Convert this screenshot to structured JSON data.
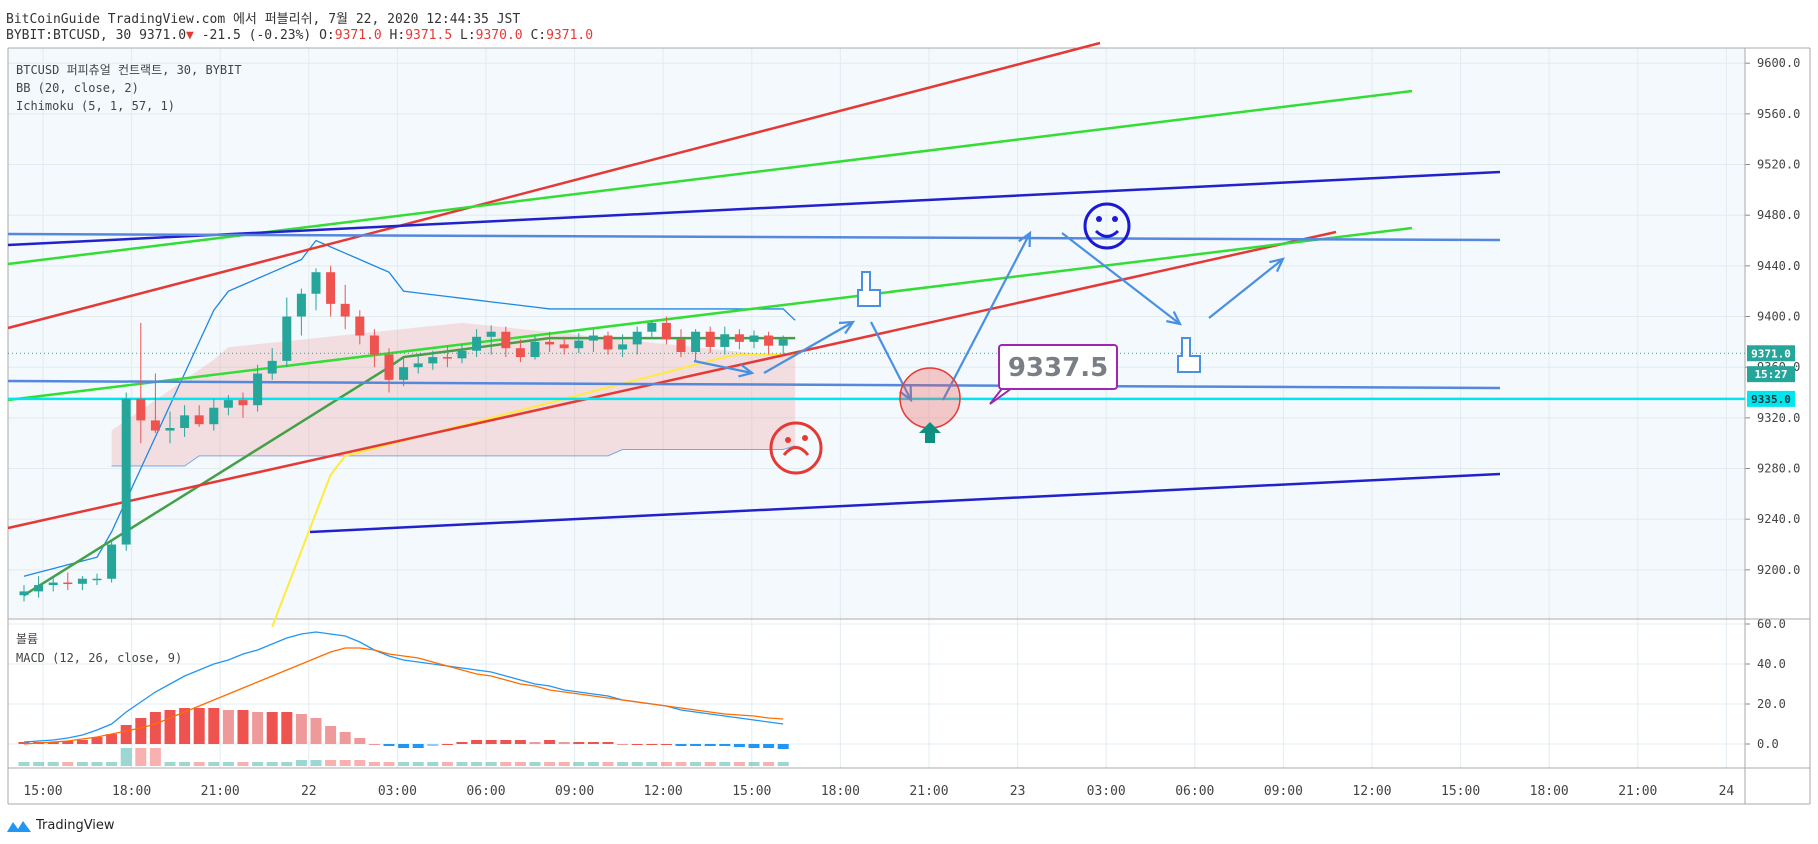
{
  "header": {
    "line1": "BitCoinGuide TradingView.com 에서 퍼블리쉬, 7월 22, 2020 12:44:35 JST",
    "symbol": "BYBIT:BTCUSD, 30",
    "last": "9371.0",
    "change": "-21.5 (-0.23%)",
    "o_label": "O:",
    "o": "9371.0",
    "h_label": "H:",
    "h": "9371.5",
    "l_label": "L:",
    "l": "9370.0",
    "c_label": "C:",
    "c": "9371.0",
    "down_arrow": "▼"
  },
  "legend": {
    "instrument": "BTCUSD 퍼피츄얼 컨트랙트, 30, BYBIT",
    "bb": "BB (20, close, 2)",
    "ichimoku": "Ichimoku (5, 1, 57, 1)",
    "volume": "볼륨",
    "macd": "MACD (12, 26, close, 9)"
  },
  "annotation": {
    "price_box": "9337.5"
  },
  "footer": {
    "brand": "TradingView"
  },
  "colors": {
    "up": "#26a69a",
    "down": "#ef5350",
    "red_line": "#e53935",
    "green_line": "#33dd33",
    "blue_line": "#2222cc",
    "steel_line": "#5588dd",
    "cyan_line": "#00e5ee",
    "bb_line": "#1e88e5",
    "conv_line": "#43a047",
    "lag_line": "#ffeb3b",
    "macd_line": "#2196f3",
    "signal_line": "#ff6d00",
    "annotation_purple": "#9c27b0"
  },
  "chart_data": [
    {
      "type": "candlestick",
      "title": "BTCUSD 퍼피츄얼 컨트랙트, 30, BYBIT",
      "x_ticks": [
        "15:00",
        "18:00",
        "21:00",
        "22",
        "03:00",
        "06:00",
        "09:00",
        "12:00",
        "15:00",
        "18:00",
        "21:00",
        "23",
        "03:00",
        "06:00",
        "09:00",
        "12:00",
        "15:00",
        "18:00",
        "21:00",
        "24"
      ],
      "y_ticks": [
        9200,
        9240,
        9280,
        9320,
        9360,
        9400,
        9440,
        9480,
        9520,
        9560,
        9600
      ],
      "ylim": [
        9162,
        9612
      ],
      "price_labels": [
        {
          "text": "9371.0",
          "value": 9371.0,
          "color": "#26a69a"
        },
        {
          "text": "15:27",
          "value": 9354.5,
          "color": "#26a69a"
        },
        {
          "text": "9335.0",
          "value": 9335.0,
          "color": "#00e5ee"
        }
      ],
      "candles": {
        "open": [
          9180,
          9183,
          9188,
          9190,
          9189,
          9193,
          9193,
          9220,
          9335,
          9318,
          9310,
          9312,
          9322,
          9315,
          9328,
          9334,
          9330,
          9355,
          9365,
          9400,
          9418,
          9435,
          9410,
          9400,
          9385,
          9370,
          9350,
          9360,
          9363,
          9368,
          9367,
          9373,
          9384,
          9388,
          9375,
          9368,
          9380,
          9378,
          9375,
          9381,
          9385,
          9374,
          9378,
          9388,
          9395,
          9382,
          9372,
          9388,
          9376,
          9386,
          9380,
          9385,
          9377
        ],
        "high": [
          9188,
          9195,
          9195,
          9198,
          9195,
          9197,
          9224,
          9340,
          9395,
          9355,
          9325,
          9330,
          9330,
          9335,
          9338,
          9340,
          9362,
          9375,
          9415,
          9422,
          9438,
          9440,
          9425,
          9405,
          9390,
          9375,
          9368,
          9370,
          9373,
          9377,
          9378,
          9390,
          9393,
          9392,
          9382,
          9385,
          9388,
          9384,
          9387,
          9390,
          9388,
          9386,
          9392,
          9397,
          9400,
          9390,
          9390,
          9392,
          9392,
          9390,
          9389,
          9388,
          9385
        ],
        "low": [
          9175,
          9178,
          9183,
          9184,
          9184,
          9188,
          9190,
          9215,
          9300,
          9308,
          9300,
          9305,
          9313,
          9310,
          9322,
          9320,
          9325,
          9350,
          9360,
          9385,
          9405,
          9400,
          9390,
          9378,
          9360,
          9340,
          9345,
          9355,
          9358,
          9360,
          9363,
          9368,
          9370,
          9368,
          9364,
          9366,
          9372,
          9370,
          9371,
          9372,
          9370,
          9368,
          9370,
          9384,
          9378,
          9368,
          9365,
          9371,
          9370,
          9374,
          9375,
          9370,
          9370
        ],
        "close": [
          9183,
          9188,
          9190,
          9189,
          9193,
          9193,
          9220,
          9335,
          9318,
          9310,
          9312,
          9322,
          9315,
          9328,
          9334,
          9330,
          9355,
          9365,
          9400,
          9418,
          9435,
          9410,
          9400,
          9385,
          9370,
          9350,
          9360,
          9363,
          9368,
          9367,
          9373,
          9384,
          9388,
          9375,
          9368,
          9380,
          9378,
          9375,
          9381,
          9385,
          9374,
          9378,
          9388,
          9395,
          9382,
          9372,
          9388,
          9376,
          9386,
          9380,
          9385,
          9377,
          9382
        ]
      },
      "macd_panel": {
        "legend": "MACD (12, 26, close, 9)",
        "y_ticks": [
          0.0,
          20.0,
          40.0,
          60.0
        ],
        "ylim": [
          -12,
          62
        ],
        "macd": [
          1,
          1.5,
          2,
          3,
          4.5,
          7,
          10,
          16,
          21,
          26,
          30,
          34,
          37,
          40,
          42,
          45,
          47,
          50,
          53,
          55,
          56,
          55,
          54,
          51,
          47,
          44,
          42,
          41,
          40,
          39,
          38,
          37,
          36,
          34,
          32,
          30,
          29,
          27,
          26,
          25,
          24,
          22,
          21,
          20,
          19,
          17,
          16,
          15,
          14,
          13,
          12,
          11,
          10
        ],
        "signal": [
          0,
          0.5,
          1,
          1.5,
          2.5,
          3.5,
          5,
          6.5,
          8,
          10,
          13,
          16,
          19,
          22,
          25,
          28,
          31,
          34,
          37,
          40,
          43,
          46,
          48,
          48,
          47,
          45,
          44,
          43,
          41,
          39,
          37,
          35,
          34,
          32,
          30,
          29,
          27,
          26,
          25,
          24,
          23,
          22,
          21,
          20,
          19,
          18,
          17,
          16,
          15,
          14.5,
          14,
          13,
          12.5
        ],
        "histogram": [
          1,
          1,
          1,
          1.5,
          2,
          3.5,
          5,
          9.5,
          13,
          16,
          17,
          18,
          18,
          18,
          17,
          17,
          16,
          16,
          16,
          15,
          13,
          9,
          6,
          3,
          0,
          -1,
          -2,
          -2,
          -1,
          0,
          1,
          2,
          2,
          2,
          2,
          1,
          2,
          1,
          1,
          1,
          1,
          0,
          0,
          0,
          0,
          -1,
          -1,
          -1,
          -1,
          -1.5,
          -2,
          -2,
          -2.5
        ]
      },
      "volume_legend": "볼륨"
    }
  ]
}
